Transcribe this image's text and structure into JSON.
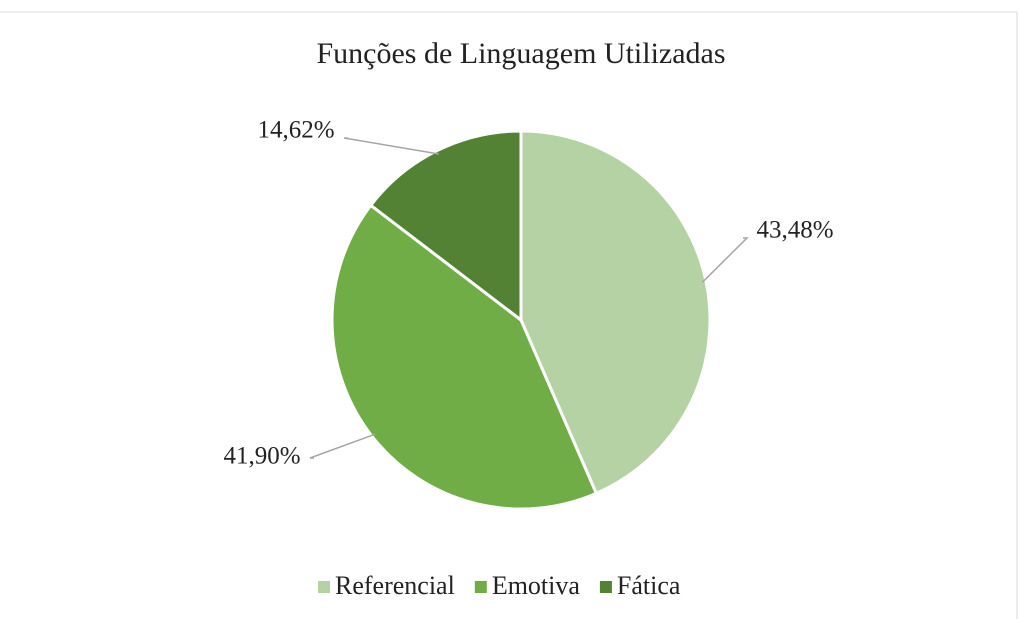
{
  "chart_data": {
    "type": "pie",
    "title": "Funções de Linguagem Utilizadas",
    "categories": [
      "Referencial",
      "Emotiva",
      "Fática"
    ],
    "values": [
      43.48,
      41.9,
      14.62
    ],
    "value_labels": [
      "43,48%",
      "41,90%",
      "14,62%"
    ],
    "colors": [
      "#b5d2a5",
      "#70ad47",
      "#548235"
    ],
    "legend": "bottom"
  }
}
